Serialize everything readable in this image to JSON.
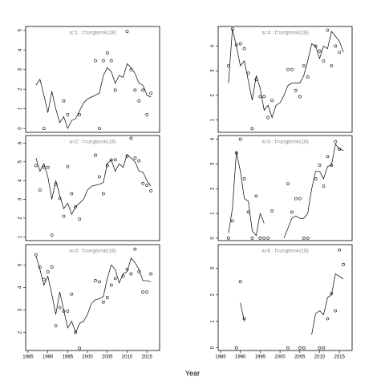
{
  "xlabel": "Year",
  "chart_data": [
    {
      "type": "scatter",
      "title": "a=1 : f=ungtorsk(18)",
      "xlim": [
        1984.4,
        2018.2
      ],
      "ylim": [
        -0.2,
        5.2
      ],
      "yticks": [
        0,
        1,
        2,
        3,
        4,
        5
      ],
      "x": [
        1987,
        1988,
        1989,
        1990,
        1991,
        1992,
        1993,
        1994,
        1995,
        1996,
        1997,
        1998,
        1999,
        2000,
        2001,
        2002,
        2003,
        2004,
        2005,
        2006,
        2007,
        2008,
        2009,
        2010,
        2011,
        2012,
        2013,
        2014,
        2015,
        2016
      ],
      "series": [
        {
          "style": "points",
          "values": [
            null,
            null,
            0,
            null,
            null,
            null,
            null,
            1.4,
            0.7,
            null,
            null,
            0.7,
            null,
            null,
            null,
            3.45,
            0,
            3.45,
            3.85,
            3.45,
            1.95,
            null,
            null,
            4.95,
            3.0,
            1.95,
            1.4,
            1.95,
            0.7,
            1.8
          ]
        },
        {
          "style": "line",
          "values": [
            2.2,
            2.5,
            1.7,
            0.8,
            1.9,
            1.0,
            0.3,
            0.6,
            0.0,
            0.4,
            0.5,
            0.9,
            1.3,
            1.5,
            1.6,
            1.7,
            1.8,
            2.7,
            3.1,
            2.9,
            2.3,
            2.7,
            2.6,
            3.3,
            3.1,
            2.8,
            2.3,
            2.2,
            1.7,
            1.6
          ]
        }
      ]
    },
    {
      "type": "scatter",
      "title": "a=2 : f=ungtorsk(18)",
      "xlim": [
        1984.4,
        2018.2
      ],
      "ylim": [
        0.8,
        6.4
      ],
      "yticks": [
        1,
        2,
        3,
        4,
        5,
        6
      ],
      "x": [
        1987,
        1988,
        1989,
        1990,
        1991,
        1992,
        1993,
        1994,
        1995,
        1996,
        1997,
        1998,
        1999,
        2000,
        2001,
        2002,
        2003,
        2004,
        2005,
        2006,
        2007,
        2008,
        2009,
        2010,
        2011,
        2012,
        2013,
        2014,
        2015,
        2016
      ],
      "series": [
        {
          "style": "points",
          "values": [
            4.8,
            3.5,
            4.7,
            4.7,
            1.1,
            3.8,
            3.05,
            2.1,
            4.75,
            3.3,
            2.6,
            1.95,
            null,
            null,
            null,
            5.35,
            4.2,
            3.3,
            4.8,
            5.1,
            5.1,
            null,
            null,
            5.3,
            6.25,
            5.2,
            5.05,
            3.85,
            3.75,
            3.45
          ]
        },
        {
          "style": "line",
          "values": [
            5.2,
            4.5,
            4.9,
            4.2,
            3.0,
            4.0,
            3.2,
            2.5,
            2.8,
            2.2,
            2.6,
            2.8,
            3.0,
            3.5,
            3.7,
            3.75,
            3.8,
            3.9,
            4.9,
            5.1,
            4.5,
            4.9,
            4.7,
            5.4,
            5.2,
            5.0,
            4.5,
            4.45,
            4.0,
            3.7
          ]
        }
      ]
    },
    {
      "type": "scatter",
      "title": "a=3 : f=ungtorsk(18)",
      "xlim": [
        1984.4,
        2018.2
      ],
      "xticks": [
        1985,
        1990,
        1995,
        2000,
        2005,
        2010,
        2015
      ],
      "ylim": [
        1.2,
        5.9
      ],
      "yticks": [
        2,
        3,
        4,
        5
      ],
      "x": [
        1987,
        1988,
        1989,
        1990,
        1991,
        1992,
        1993,
        1994,
        1995,
        1996,
        1997,
        1998,
        1999,
        2000,
        2001,
        2002,
        2003,
        2004,
        2005,
        2006,
        2007,
        2008,
        2009,
        2010,
        2011,
        2012,
        2013,
        2014,
        2015,
        2016
      ],
      "series": [
        {
          "style": "points",
          "values": [
            5.45,
            4.9,
            4.35,
            4.7,
            4.9,
            2.3,
            3.1,
            2.95,
            2.95,
            3.7,
            2.0,
            1.3,
            null,
            null,
            null,
            4.3,
            4.25,
            3.35,
            3.55,
            4.1,
            4.4,
            null,
            4.5,
            4.8,
            4.6,
            5.7,
            4.7,
            3.8,
            3.8,
            4.6
          ]
        },
        {
          "style": "line",
          "values": [
            5.4,
            4.8,
            4.1,
            4.5,
            3.7,
            2.8,
            3.8,
            3.0,
            2.2,
            2.5,
            2.0,
            2.4,
            2.5,
            2.8,
            3.3,
            3.45,
            3.5,
            3.6,
            4.4,
            5.0,
            4.8,
            4.2,
            4.6,
            4.7,
            5.3,
            5.1,
            4.8,
            4.3,
            4.3,
            4.25
          ]
        }
      ]
    },
    {
      "type": "scatter",
      "title": "a=4 : f=ungtorsk(18)",
      "xlim": [
        1984.4,
        2018.2
      ],
      "ylim": [
        0.5,
        4.8
      ],
      "yticks": [
        1,
        2,
        3,
        4
      ],
      "x": [
        1987,
        1988,
        1989,
        1990,
        1991,
        1992,
        1993,
        1994,
        1995,
        1996,
        1997,
        1998,
        1999,
        2000,
        2001,
        2002,
        2003,
        2004,
        2005,
        2006,
        2007,
        2008,
        2009,
        2010,
        2011,
        2012,
        2013,
        2014,
        2015,
        2016
      ],
      "series": [
        {
          "style": "points",
          "values": [
            3.2,
            4.7,
            4.05,
            4.1,
            3.9,
            2.9,
            0.65,
            2.65,
            1.95,
            1.95,
            1.1,
            1.8,
            null,
            null,
            null,
            3.05,
            3.05,
            2.2,
            1.95,
            3.2,
            2.75,
            null,
            4.0,
            3.8,
            3.4,
            4.65,
            3.2,
            4.0,
            3.75,
            null
          ]
        },
        {
          "style": "line",
          "values": [
            2.5,
            4.7,
            4.0,
            3.2,
            3.4,
            2.6,
            1.8,
            2.8,
            2.3,
            1.4,
            1.6,
            1.1,
            1.6,
            1.7,
            2.0,
            2.4,
            2.5,
            2.5,
            2.5,
            2.8,
            3.4,
            4.1,
            4.0,
            3.5,
            4.0,
            3.9,
            4.6,
            4.4,
            4.2,
            3.75
          ]
        }
      ]
    },
    {
      "type": "scatter",
      "title": "a=5 : f=ungtorsk(18)",
      "xlim": [
        1984.4,
        2018.2
      ],
      "ylim": [
        -0.1,
        4.15
      ],
      "yticks": [
        0,
        1,
        2,
        3,
        4
      ],
      "x": [
        1987,
        1988,
        1989,
        1990,
        1991,
        1992,
        1993,
        1994,
        1995,
        1996,
        1997,
        1998,
        1999,
        2000,
        2001,
        2002,
        2003,
        2004,
        2005,
        2006,
        2007,
        2008,
        2009,
        2010,
        2011,
        2012,
        2013,
        2014,
        2015,
        2016
      ],
      "series": [
        {
          "style": "points",
          "values": [
            0,
            0.7,
            3.45,
            4.0,
            2.4,
            1.05,
            0,
            1.7,
            0,
            0,
            0,
            1.1,
            null,
            null,
            null,
            2.2,
            1.05,
            1.6,
            1.6,
            0,
            0,
            null,
            2.4,
            2.95,
            2.1,
            3.3,
            2.95,
            3.9,
            3.6,
            null
          ]
        },
        {
          "style": "line",
          "values": [
            0.2,
            1.2,
            3.5,
            2.7,
            1.6,
            1.5,
            0.3,
            0.1,
            1.0,
            0.6,
            null,
            null,
            null,
            null,
            0.0,
            0.4,
            0.8,
            0.9,
            0.8,
            0.8,
            1.0,
            2.0,
            2.7,
            2.7,
            2.4,
            2.9,
            2.95,
            3.8,
            3.6,
            3.55
          ]
        }
      ]
    },
    {
      "type": "scatter",
      "title": "a=6 : f=ungtorsk(18)",
      "xlim": [
        1984.4,
        2018.2
      ],
      "xticks": [
        1985,
        1990,
        1995,
        2000,
        2005,
        2010,
        2015
      ],
      "ylim": [
        -0.1,
        3.9
      ],
      "yticks": [
        0,
        1,
        2,
        3
      ],
      "x": [
        1987,
        1988,
        1989,
        1990,
        1991,
        1992,
        1993,
        1994,
        1995,
        1996,
        1997,
        1998,
        1999,
        2000,
        2001,
        2002,
        2003,
        2004,
        2005,
        2006,
        2007,
        2008,
        2009,
        2010,
        2011,
        2012,
        2013,
        2014,
        2015,
        2016
      ],
      "series": [
        {
          "style": "points",
          "values": [
            null,
            null,
            0,
            2.5,
            1.1,
            null,
            null,
            null,
            null,
            null,
            null,
            null,
            null,
            null,
            null,
            0,
            null,
            null,
            0,
            0,
            null,
            null,
            null,
            0,
            0,
            1.1,
            2.05,
            1.4,
            3.7,
            3.15
          ]
        },
        {
          "style": "line",
          "values": [
            0.0,
            null,
            null,
            1.7,
            1.0,
            null,
            null,
            null,
            null,
            null,
            null,
            null,
            null,
            null,
            null,
            null,
            null,
            null,
            null,
            null,
            null,
            0.5,
            1.3,
            1.4,
            1.25,
            1.9,
            2.0,
            2.8,
            2.7,
            2.6
          ]
        }
      ]
    }
  ]
}
